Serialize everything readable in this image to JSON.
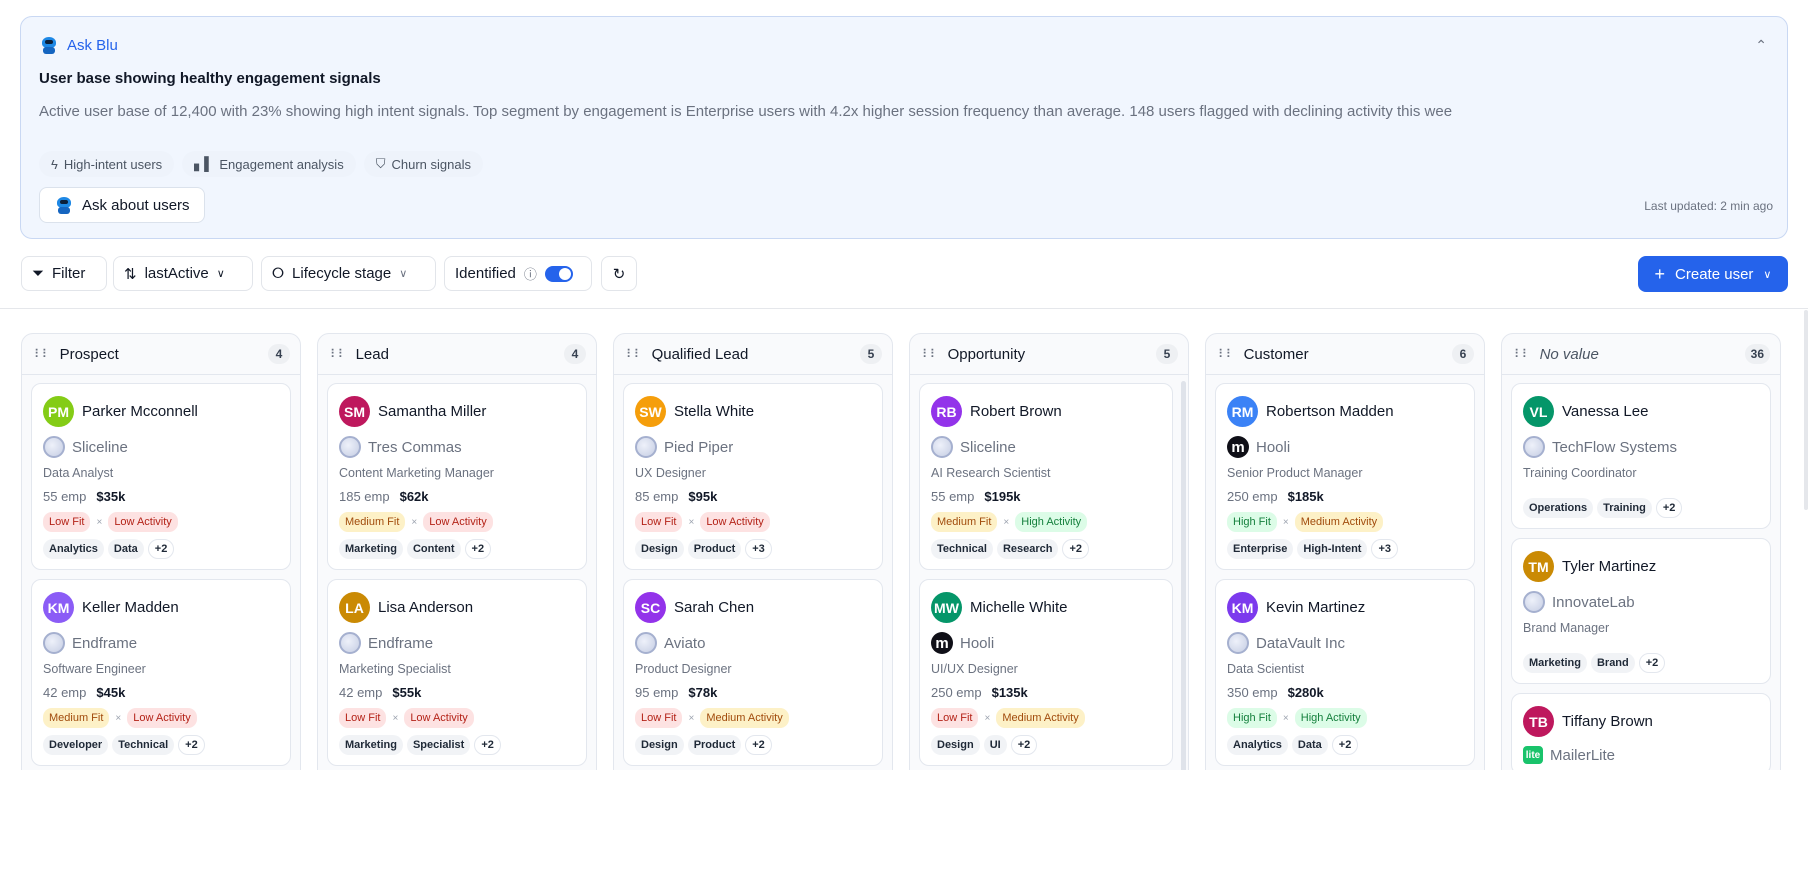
{
  "ask_blu": {
    "label": "Ask Blu",
    "headline": "User base showing healthy engagement signals",
    "description": "Active user base of 12,400 with 23% showing high intent signals. Top segment by engagement is Enterprise users with 4.2x higher session frequency than average. 148 users flagged with declining activity this wee",
    "chips": [
      {
        "label": "High-intent users",
        "icon": "lightning-icon"
      },
      {
        "label": "Engagement analysis",
        "icon": "bar-chart-icon"
      },
      {
        "label": "Churn signals",
        "icon": "shield-icon"
      }
    ],
    "ask_button": "Ask about users",
    "last_updated": "Last updated: 2 min ago"
  },
  "toolbar": {
    "filter": "Filter",
    "sort": "lastActive",
    "group": "Lifecycle stage",
    "identified": "Identified",
    "identified_on": true,
    "create": "Create user"
  },
  "colors": {
    "accent": "#2563eb"
  },
  "columns": [
    {
      "title": "Prospect",
      "count": "4",
      "cards": [
        {
          "initials": "PM",
          "color": "#84cc16",
          "name": "Parker Mcconnell",
          "company": "Sliceline",
          "logo": "globe",
          "title": "Data Analyst",
          "emp": "55 emp",
          "revenue": "$35k",
          "fit": "Low Fit",
          "fit_level": "low",
          "activity": "Low Activity",
          "activity_level": "low",
          "tags": [
            "Analytics",
            "Data"
          ],
          "more": "+2"
        },
        {
          "initials": "KM",
          "color": "#8b5cf6",
          "name": "Keller Madden",
          "company": "Endframe",
          "logo": "globe",
          "title": "Software Engineer",
          "emp": "42 emp",
          "revenue": "$45k",
          "fit": "Medium Fit",
          "fit_level": "med",
          "activity": "Low Activity",
          "activity_level": "low",
          "tags": [
            "Developer",
            "Technical"
          ],
          "more": "+2"
        }
      ]
    },
    {
      "title": "Lead",
      "count": "4",
      "cards": [
        {
          "initials": "SM",
          "color": "#be185d",
          "name": "Samantha Miller",
          "company": "Tres Commas",
          "logo": "globe",
          "title": "Content Marketing Manager",
          "emp": "185 emp",
          "revenue": "$62k",
          "fit": "Medium Fit",
          "fit_level": "med",
          "activity": "Low Activity",
          "activity_level": "low",
          "tags": [
            "Marketing",
            "Content"
          ],
          "more": "+2"
        },
        {
          "initials": "LA",
          "color": "#ca8a04",
          "name": "Lisa Anderson",
          "company": "Endframe",
          "logo": "globe",
          "title": "Marketing Specialist",
          "emp": "42 emp",
          "revenue": "$55k",
          "fit": "Low Fit",
          "fit_level": "low",
          "activity": "Low Activity",
          "activity_level": "low",
          "tags": [
            "Marketing",
            "Specialist"
          ],
          "more": "+2"
        }
      ]
    },
    {
      "title": "Qualified Lead",
      "count": "5",
      "cards": [
        {
          "initials": "SW",
          "color": "#f59e0b",
          "name": "Stella White",
          "company": "Pied Piper",
          "logo": "globe",
          "title": "UX Designer",
          "emp": "85 emp",
          "revenue": "$95k",
          "fit": "Low Fit",
          "fit_level": "low",
          "activity": "Low Activity",
          "activity_level": "low",
          "tags": [
            "Design",
            "Product"
          ],
          "more": "+3"
        },
        {
          "initials": "SC",
          "color": "#9333ea",
          "name": "Sarah Chen",
          "company": "Aviato",
          "logo": "globe",
          "title": "Product Designer",
          "emp": "95 emp",
          "revenue": "$78k",
          "fit": "Low Fit",
          "fit_level": "low",
          "activity": "Medium Activity",
          "activity_level": "med",
          "tags": [
            "Design",
            "Product"
          ],
          "more": "+2"
        }
      ]
    },
    {
      "title": "Opportunity",
      "count": "5",
      "scroll": true,
      "cards": [
        {
          "initials": "RB",
          "color": "#9333ea",
          "name": "Robert Brown",
          "company": "Sliceline",
          "logo": "globe",
          "title": "AI Research Scientist",
          "emp": "55 emp",
          "revenue": "$195k",
          "fit": "Medium Fit",
          "fit_level": "med",
          "activity": "High Activity",
          "activity_level": "high",
          "tags": [
            "Technical",
            "Research"
          ],
          "more": "+2"
        },
        {
          "initials": "MW",
          "color": "#059669",
          "name": "Michelle White",
          "company": "Hooli",
          "logo": "hooli",
          "title": "UI/UX Designer",
          "emp": "250 emp",
          "revenue": "$135k",
          "fit": "Low Fit",
          "fit_level": "low",
          "activity": "Medium Activity",
          "activity_level": "med",
          "tags": [
            "Design",
            "UI"
          ],
          "more": "+2"
        }
      ]
    },
    {
      "title": "Customer",
      "count": "6",
      "cards": [
        {
          "initials": "RM",
          "color": "#3b82f6",
          "name": "Robertson Madden",
          "company": "Hooli",
          "logo": "hooli",
          "title": "Senior Product Manager",
          "emp": "250 emp",
          "revenue": "$185k",
          "fit": "High Fit",
          "fit_level": "high",
          "activity": "Medium Activity",
          "activity_level": "med",
          "tags": [
            "Enterprise",
            "High-Intent"
          ],
          "more": "+3"
        },
        {
          "initials": "KM",
          "color": "#7c3aed",
          "name": "Kevin Martinez",
          "company": "DataVault Inc",
          "logo": "globe",
          "title": "Data Scientist",
          "emp": "350 emp",
          "revenue": "$280k",
          "fit": "High Fit",
          "fit_level": "high",
          "activity": "High Activity",
          "activity_level": "high",
          "tags": [
            "Analytics",
            "Data"
          ],
          "more": "+2"
        }
      ]
    },
    {
      "title": "No value",
      "count": "36",
      "italic": true,
      "cards": [
        {
          "initials": "VL",
          "color": "#059669",
          "name": "Vanessa Lee",
          "company": "TechFlow Systems",
          "logo": "globe",
          "title": "Training Coordinator",
          "tags": [
            "Operations",
            "Training"
          ],
          "more": "+2"
        },
        {
          "initials": "TM",
          "color": "#ca8a04",
          "name": "Tyler Martinez",
          "company": "InnovateLab",
          "logo": "globe",
          "title": "Brand Manager",
          "tags": [
            "Marketing",
            "Brand"
          ],
          "more": "+2"
        },
        {
          "initials": "TB",
          "color": "#be185d",
          "name": "Tiffany Brown",
          "company": "MailerLite",
          "logo": "mailer",
          "logo_text": "lite"
        }
      ]
    }
  ]
}
